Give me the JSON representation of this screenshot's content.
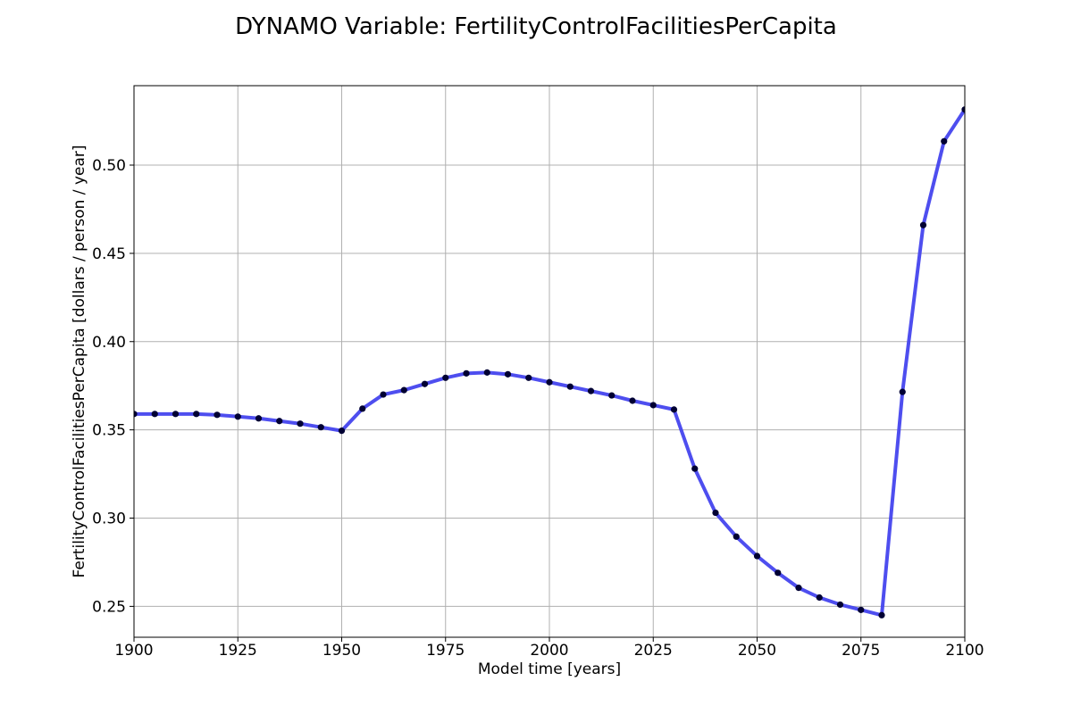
{
  "chart_data": {
    "type": "line",
    "title": "DYNAMO Variable: FertilityControlFacilitiesPerCapita",
    "xlabel": "Model time [years]",
    "ylabel": "FertilityControlFacilitiesPerCapita [dollars / person / year]",
    "xlim": [
      1900,
      2100
    ],
    "ylim": [
      0.2325,
      0.545
    ],
    "x_ticks": [
      1900,
      1925,
      1950,
      1975,
      2000,
      2025,
      2050,
      2075,
      2100
    ],
    "y_ticks": [
      0.25,
      0.3,
      0.35,
      0.4,
      0.45,
      0.5
    ],
    "x_tick_labels": [
      "1900",
      "1925",
      "1950",
      "1975",
      "2000",
      "2025",
      "2050",
      "2075",
      "2100"
    ],
    "y_tick_labels": [
      "0.25",
      "0.30",
      "0.35",
      "0.40",
      "0.45",
      "0.50"
    ],
    "grid": true,
    "series": [
      {
        "line_color": "#4444ee",
        "marker_color": "#000033",
        "x": [
          1900,
          1905,
          1910,
          1915,
          1920,
          1925,
          1930,
          1935,
          1940,
          1945,
          1950,
          1955,
          1960,
          1965,
          1970,
          1975,
          1980,
          1985,
          1990,
          1995,
          2000,
          2005,
          2010,
          2015,
          2020,
          2025,
          2030,
          2035,
          2040,
          2045,
          2050,
          2055,
          2060,
          2065,
          2070,
          2075,
          2080,
          2085,
          2090,
          2095,
          2100
        ],
        "y": [
          0.359,
          0.359,
          0.359,
          0.359,
          0.3585,
          0.3575,
          0.3565,
          0.355,
          0.3535,
          0.3515,
          0.3495,
          0.362,
          0.37,
          0.3725,
          0.376,
          0.3795,
          0.382,
          0.3825,
          0.3815,
          0.3795,
          0.377,
          0.3745,
          0.372,
          0.3695,
          0.3665,
          0.364,
          0.3615,
          0.328,
          0.303,
          0.2895,
          0.2785,
          0.269,
          0.2605,
          0.255,
          0.251,
          0.248,
          0.245,
          0.3715,
          0.466,
          0.5135,
          0.5315
        ]
      }
    ]
  }
}
